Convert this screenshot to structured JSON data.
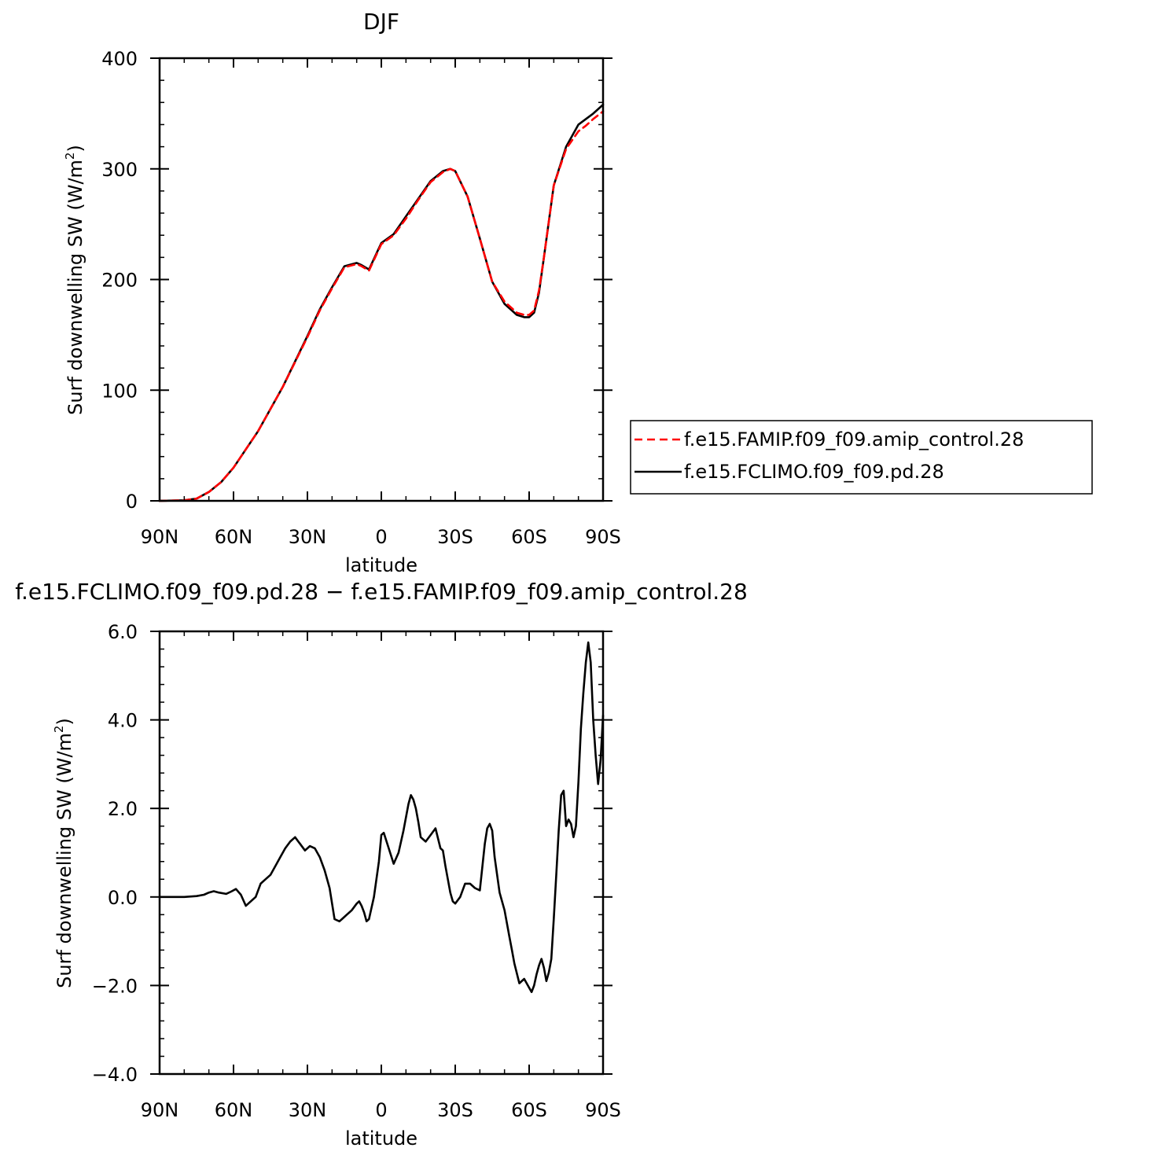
{
  "chart_data": [
    {
      "type": "line",
      "title": "DJF",
      "xlabel": "latitude",
      "ylabel": "Surf downwelling SW (W/m",
      "ylabel_sup": "2",
      "ylabel_tail": ")",
      "xlim": [
        -90,
        90
      ],
      "ylim": [
        0,
        400
      ],
      "x_ticks": [
        -90,
        -60,
        -30,
        0,
        30,
        60,
        90
      ],
      "x_tick_labels": [
        "90N",
        "60N",
        "30N",
        "0",
        "30S",
        "60S",
        "90S"
      ],
      "y_ticks": [
        0,
        100,
        200,
        300,
        400
      ],
      "y_tick_labels": [
        "0",
        "100",
        "200",
        "300",
        "400"
      ],
      "grid": false,
      "legend_position": "right",
      "x": [
        -90,
        -80,
        -75,
        -70,
        -65,
        -60,
        -50,
        -40,
        -30,
        -25,
        -20,
        -15,
        -10,
        -8,
        -5,
        0,
        5,
        10,
        15,
        20,
        25,
        28,
        30,
        35,
        40,
        45,
        50,
        55,
        58,
        60,
        62,
        64,
        66,
        70,
        75,
        80,
        83,
        86,
        90
      ],
      "series": [
        {
          "name": "f.e15.FAMIP.f09_f09.amip_control.28",
          "color": "#ff0000",
          "dash": "dashed",
          "values": [
            0,
            0.5,
            2,
            8,
            17,
            30,
            63,
            103,
            148,
            172,
            192,
            211,
            214,
            212,
            208,
            232,
            240,
            255,
            272,
            288,
            297,
            300,
            298,
            275,
            237,
            198,
            180,
            170,
            168,
            168,
            172,
            190,
            220,
            285,
            318,
            334,
            339,
            345,
            352
          ]
        },
        {
          "name": "f.e15.FCLIMO.f09_f09.pd.28",
          "color": "#000000",
          "dash": "solid",
          "values": [
            0,
            0.5,
            2,
            8,
            17,
            30,
            63,
            103,
            149,
            173,
            193,
            212,
            215,
            213,
            209,
            233,
            241,
            257,
            273,
            289,
            298,
            300,
            298,
            275,
            237,
            198,
            178,
            168,
            166,
            166,
            170,
            188,
            220,
            285,
            320,
            340,
            345,
            350,
            358
          ]
        }
      ]
    },
    {
      "type": "line",
      "title": "f.e15.FCLIMO.f09_f09.pd.28 − f.e15.FAMIP.f09_f09.amip_control.28",
      "xlabel": "latitude",
      "ylabel": "Surf downwelling SW (W/m",
      "ylabel_sup": "2",
      "ylabel_tail": ")",
      "xlim": [
        -90,
        90
      ],
      "ylim": [
        -4,
        6
      ],
      "x_ticks": [
        -90,
        -60,
        -30,
        0,
        30,
        60,
        90
      ],
      "x_tick_labels": [
        "90N",
        "60N",
        "30N",
        "0",
        "30S",
        "60S",
        "90S"
      ],
      "y_ticks": [
        -4,
        -2,
        0,
        2,
        4,
        6
      ],
      "y_tick_labels": [
        "−4.0",
        "−2.0",
        "0.0",
        "2.0",
        "4.0",
        "6.0"
      ],
      "grid": false,
      "series": [
        {
          "name": "",
          "color": "#000000",
          "x": [
            -90,
            -80,
            -75,
            -72,
            -70,
            -68,
            -66,
            -63,
            -61,
            -59,
            -57,
            -55,
            -53,
            -51,
            -49,
            -47,
            -45,
            -43,
            -41,
            -39,
            -37,
            -35,
            -33,
            -31,
            -29,
            -27,
            -25,
            -23,
            -21,
            -19,
            -17,
            -16,
            -14,
            -13,
            -12,
            -10,
            -9,
            -8,
            -7,
            -6,
            -5,
            -3,
            -1,
            0,
            1,
            3,
            5,
            7,
            9,
            11,
            12,
            13,
            14,
            15,
            16,
            18,
            20,
            22,
            24,
            25,
            26,
            27,
            28,
            29,
            30,
            32,
            34,
            36,
            38,
            40,
            42,
            43,
            44,
            45,
            46,
            48,
            50,
            52,
            53,
            54,
            56,
            58,
            60,
            61,
            62,
            63,
            64,
            65,
            66,
            67,
            68,
            69,
            70,
            71,
            72,
            73,
            74,
            75,
            76,
            77,
            78,
            79,
            80,
            81,
            82,
            83,
            84,
            85,
            86,
            87,
            88,
            89,
            90
          ],
          "values": [
            0.0,
            0.0,
            0.02,
            0.05,
            0.1,
            0.13,
            0.1,
            0.07,
            0.12,
            0.18,
            0.05,
            -0.2,
            -0.1,
            0.0,
            0.3,
            0.4,
            0.5,
            0.7,
            0.9,
            1.1,
            1.25,
            1.35,
            1.2,
            1.05,
            1.15,
            1.1,
            0.9,
            0.6,
            0.2,
            -0.5,
            -0.55,
            -0.5,
            -0.4,
            -0.35,
            -0.3,
            -0.15,
            -0.1,
            -0.2,
            -0.35,
            -0.55,
            -0.5,
            0.0,
            0.8,
            1.4,
            1.45,
            1.1,
            0.75,
            1.0,
            1.5,
            2.1,
            2.3,
            2.2,
            2.0,
            1.7,
            1.35,
            1.25,
            1.4,
            1.55,
            1.1,
            1.05,
            0.7,
            0.4,
            0.1,
            -0.1,
            -0.15,
            0.0,
            0.3,
            0.3,
            0.2,
            0.15,
            1.2,
            1.55,
            1.65,
            1.5,
            0.9,
            0.1,
            -0.3,
            -0.9,
            -1.2,
            -1.5,
            -1.95,
            -1.85,
            -2.05,
            -2.15,
            -2.0,
            -1.75,
            -1.55,
            -1.4,
            -1.6,
            -1.9,
            -1.7,
            -1.4,
            -0.5,
            0.5,
            1.5,
            2.3,
            2.4,
            1.6,
            1.75,
            1.65,
            1.35,
            1.6,
            2.6,
            3.8,
            4.6,
            5.3,
            5.75,
            5.3,
            4.0,
            3.2,
            2.55,
            3.1,
            4.1
          ]
        }
      ]
    }
  ]
}
